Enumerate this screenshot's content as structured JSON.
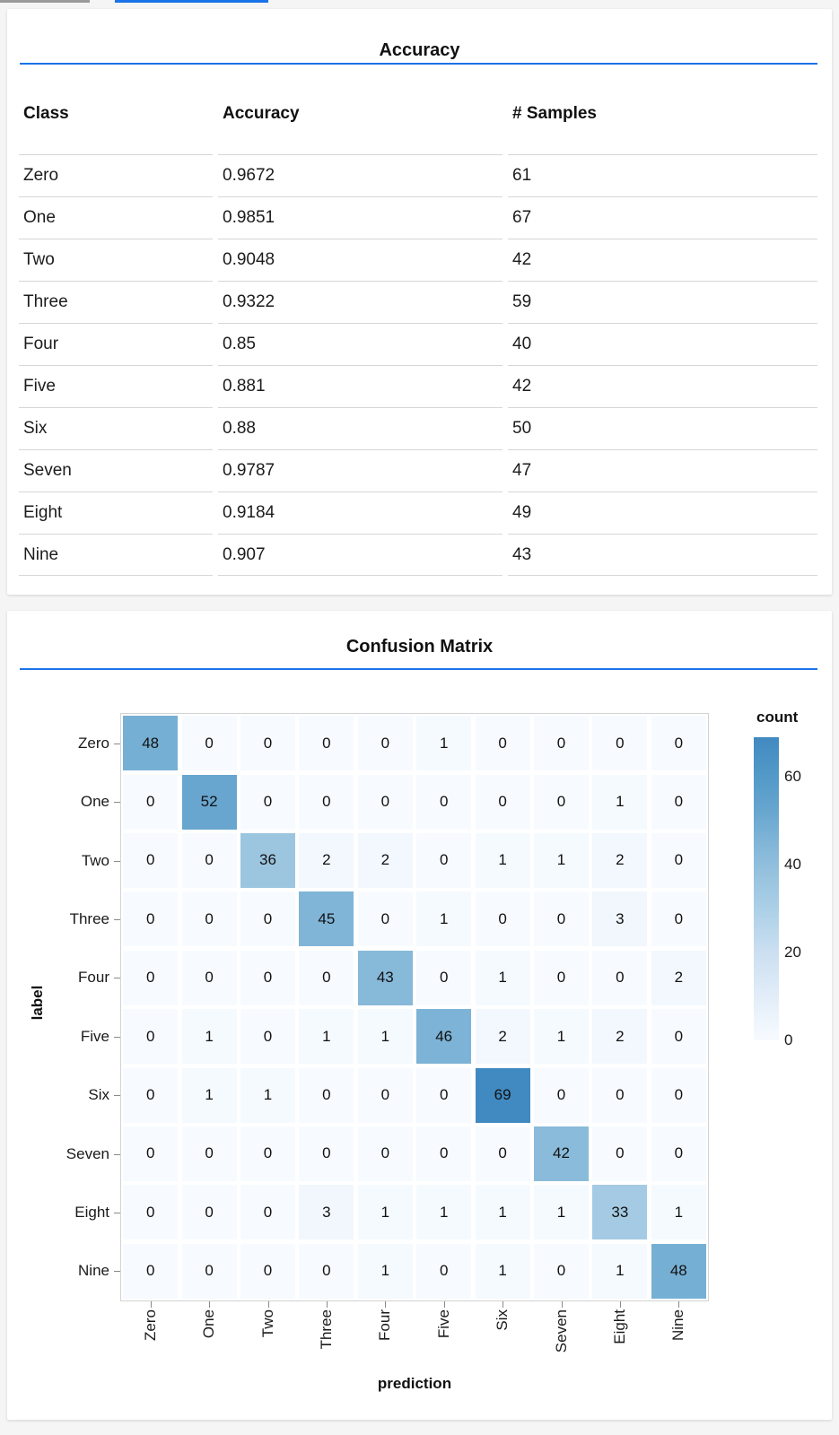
{
  "page": {
    "background": "#f5f5f5",
    "accent_blue": "#1a73e8",
    "tab_indicators": [
      {
        "state": "inactive",
        "color": "#9a9a9a"
      },
      {
        "state": "active",
        "color": "#1a73e8"
      }
    ]
  },
  "accuracy_card": {
    "title": "Accuracy",
    "table": {
      "columns": [
        "Class",
        "Accuracy",
        "# Samples"
      ],
      "rows": [
        [
          "Zero",
          "0.9672",
          "61"
        ],
        [
          "One",
          "0.9851",
          "67"
        ],
        [
          "Two",
          "0.9048",
          "42"
        ],
        [
          "Three",
          "0.9322",
          "59"
        ],
        [
          "Four",
          "0.85",
          "40"
        ],
        [
          "Five",
          "0.881",
          "42"
        ],
        [
          "Six",
          "0.88",
          "50"
        ],
        [
          "Seven",
          "0.9787",
          "47"
        ],
        [
          "Eight",
          "0.9184",
          "49"
        ],
        [
          "Nine",
          "0.907",
          "43"
        ]
      ]
    }
  },
  "confusion_card": {
    "title": "Confusion Matrix",
    "chart_data": {
      "type": "heatmap",
      "title": "Confusion Matrix",
      "xlabel": "prediction",
      "ylabel": "label",
      "x_categories": [
        "Zero",
        "One",
        "Two",
        "Three",
        "Four",
        "Five",
        "Six",
        "Seven",
        "Eight",
        "Nine"
      ],
      "y_categories": [
        "Zero",
        "One",
        "Two",
        "Three",
        "Four",
        "Five",
        "Six",
        "Seven",
        "Eight",
        "Nine"
      ],
      "matrix": [
        [
          48,
          0,
          0,
          0,
          0,
          1,
          0,
          0,
          0,
          0
        ],
        [
          0,
          52,
          0,
          0,
          0,
          0,
          0,
          0,
          1,
          0
        ],
        [
          0,
          0,
          36,
          2,
          2,
          0,
          1,
          1,
          2,
          0
        ],
        [
          0,
          0,
          0,
          45,
          0,
          1,
          0,
          0,
          3,
          0
        ],
        [
          0,
          0,
          0,
          0,
          43,
          0,
          1,
          0,
          0,
          2
        ],
        [
          0,
          1,
          0,
          1,
          1,
          46,
          2,
          1,
          2,
          0
        ],
        [
          0,
          1,
          1,
          0,
          0,
          0,
          69,
          0,
          0,
          0
        ],
        [
          0,
          0,
          0,
          0,
          0,
          0,
          0,
          42,
          0,
          0
        ],
        [
          0,
          0,
          0,
          3,
          1,
          1,
          1,
          1,
          33,
          1
        ],
        [
          0,
          0,
          0,
          0,
          1,
          0,
          1,
          0,
          1,
          48
        ]
      ],
      "legend": {
        "title": "count",
        "ticks": [
          60,
          40,
          20,
          0
        ],
        "domain": [
          0,
          69
        ]
      },
      "color_scale": {
        "scheme": "blues",
        "stops": [
          [
            0,
            "#f7fbff"
          ],
          [
            10,
            "#e2edf8"
          ],
          [
            20,
            "#cbdff1"
          ],
          [
            30,
            "#abd0e6"
          ],
          [
            36,
            "#9cc5e0"
          ],
          [
            42,
            "#8abbda"
          ],
          [
            48,
            "#76afd4"
          ],
          [
            52,
            "#68a6cf"
          ],
          [
            60,
            "#539ac8"
          ],
          [
            69,
            "#4189c1"
          ]
        ]
      }
    }
  }
}
